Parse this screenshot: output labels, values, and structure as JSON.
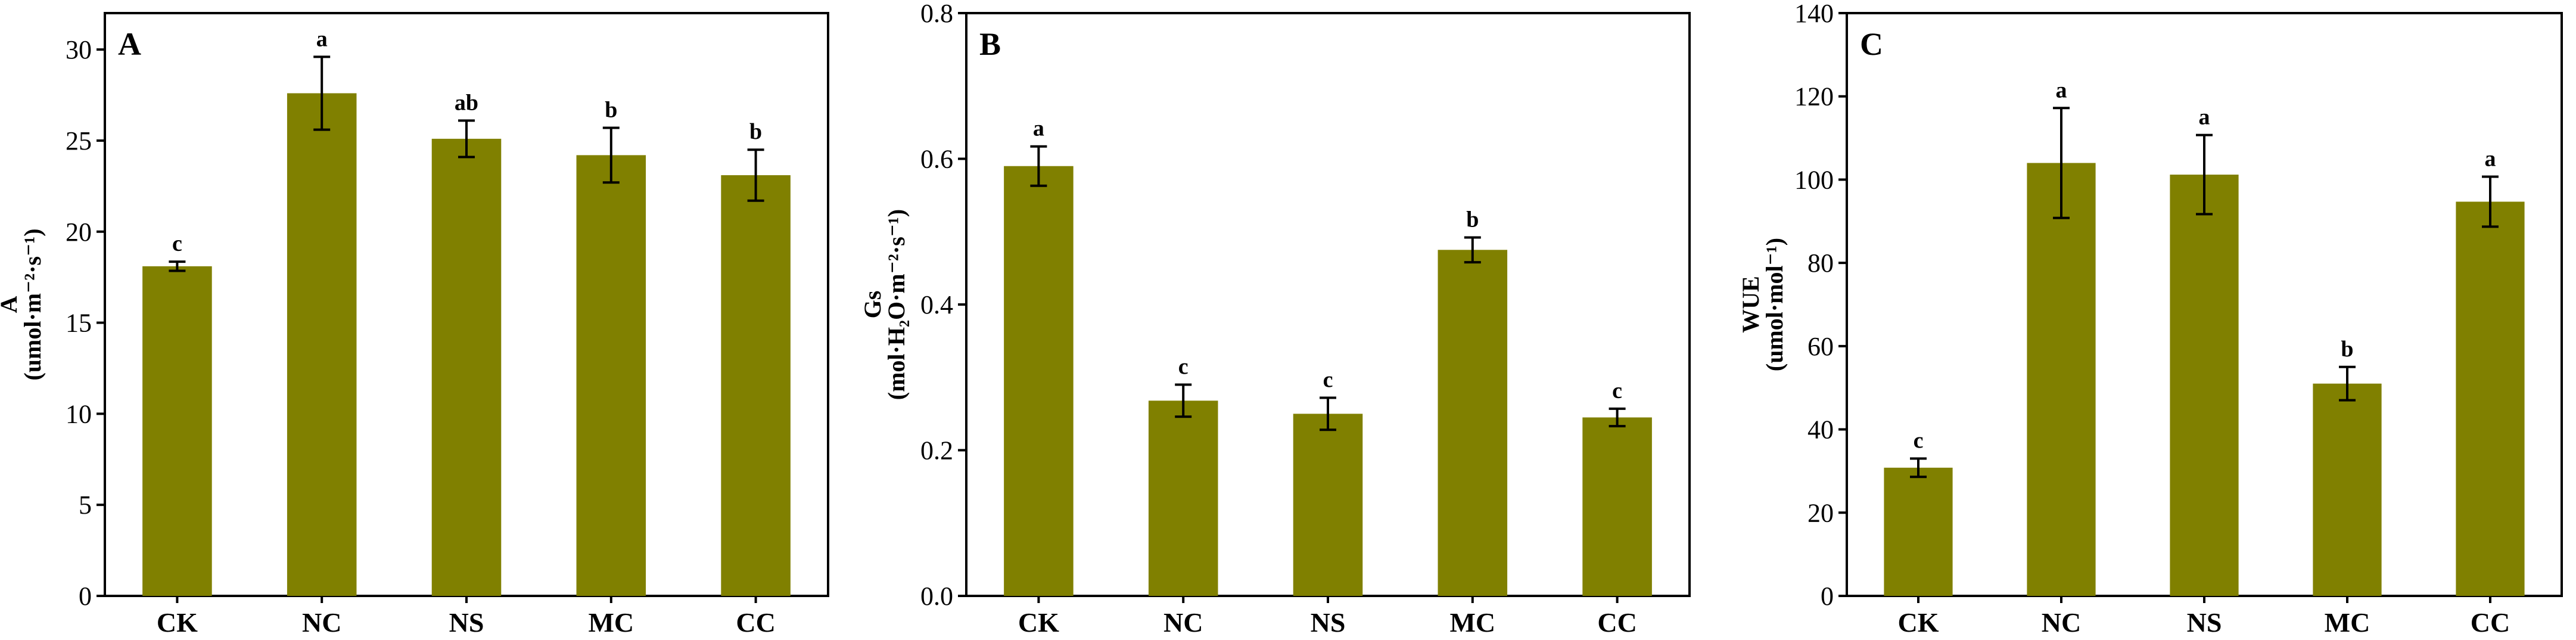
{
  "style": {
    "bar_color": "#808000",
    "axis_color": "#000000"
  },
  "chart_data": [
    {
      "type": "bar",
      "panel_label": "A",
      "ylabel_lines": [
        "A",
        "(umol·m⁻²·s⁻¹)"
      ],
      "categories": [
        "CK",
        "NC",
        "NS",
        "MC",
        "CC"
      ],
      "values": [
        18.1,
        27.6,
        25.1,
        24.2,
        23.1
      ],
      "errors": [
        0.25,
        2.0,
        1.0,
        1.5,
        1.4
      ],
      "significance": [
        "c",
        "a",
        "ab",
        "b",
        "b"
      ],
      "ylim": [
        0,
        32
      ],
      "yticks": [
        "0",
        "5",
        "10",
        "15",
        "20",
        "25",
        "30"
      ],
      "ytick_values": [
        0,
        5,
        10,
        15,
        20,
        25,
        30
      ]
    },
    {
      "type": "bar",
      "panel_label": "B",
      "ylabel_lines": [
        "Gs",
        "(mol·H₂O·m⁻²·s⁻¹)"
      ],
      "categories": [
        "CK",
        "NC",
        "NS",
        "MC",
        "CC"
      ],
      "values": [
        0.59,
        0.268,
        0.25,
        0.475,
        0.245
      ],
      "errors": [
        0.027,
        0.022,
        0.022,
        0.017,
        0.012
      ],
      "significance": [
        "a",
        "c",
        "c",
        "b",
        "c"
      ],
      "ylim": [
        0,
        0.8
      ],
      "yticks": [
        "0.0",
        "0.2",
        "0.4",
        "0.6",
        "0.8"
      ],
      "ytick_values": [
        0,
        0.2,
        0.4,
        0.6,
        0.8
      ]
    },
    {
      "type": "bar",
      "panel_label": "C",
      "ylabel_lines": [
        "WUE",
        "(umol·mol⁻¹)"
      ],
      "categories": [
        "CK",
        "NC",
        "NS",
        "MC",
        "CC"
      ],
      "values": [
        30.8,
        104,
        101.2,
        51,
        94.7
      ],
      "errors": [
        2.2,
        13.2,
        9.5,
        4,
        6
      ],
      "significance": [
        "c",
        "a",
        "a",
        "b",
        "a"
      ],
      "ylim": [
        0,
        140
      ],
      "yticks": [
        "0",
        "20",
        "40",
        "60",
        "80",
        "100",
        "120",
        "140"
      ],
      "ytick_values": [
        0,
        20,
        40,
        60,
        80,
        100,
        120,
        140
      ]
    }
  ]
}
